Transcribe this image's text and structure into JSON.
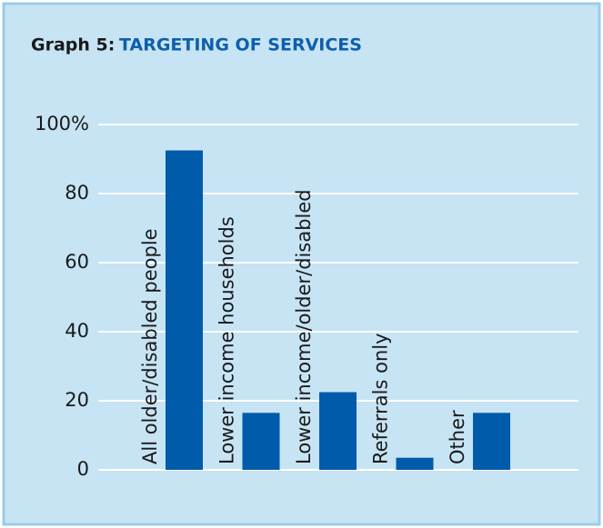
{
  "chart_data": {
    "type": "bar",
    "figure_label": "Graph 5:",
    "title": "TARGETING OF SERVICES",
    "categories": [
      "All older/disabled people",
      "Lower income households",
      "Lower income/older/disabled",
      "Referrals only",
      "Other"
    ],
    "values": [
      92.5,
      16.5,
      22.5,
      3.5,
      16.5
    ],
    "color": "#005bab",
    "ylim": [
      0,
      100
    ],
    "yticks": [
      0,
      20,
      40,
      60,
      80,
      {
        "value": 100,
        "label": "100%"
      }
    ],
    "grid": true
  }
}
